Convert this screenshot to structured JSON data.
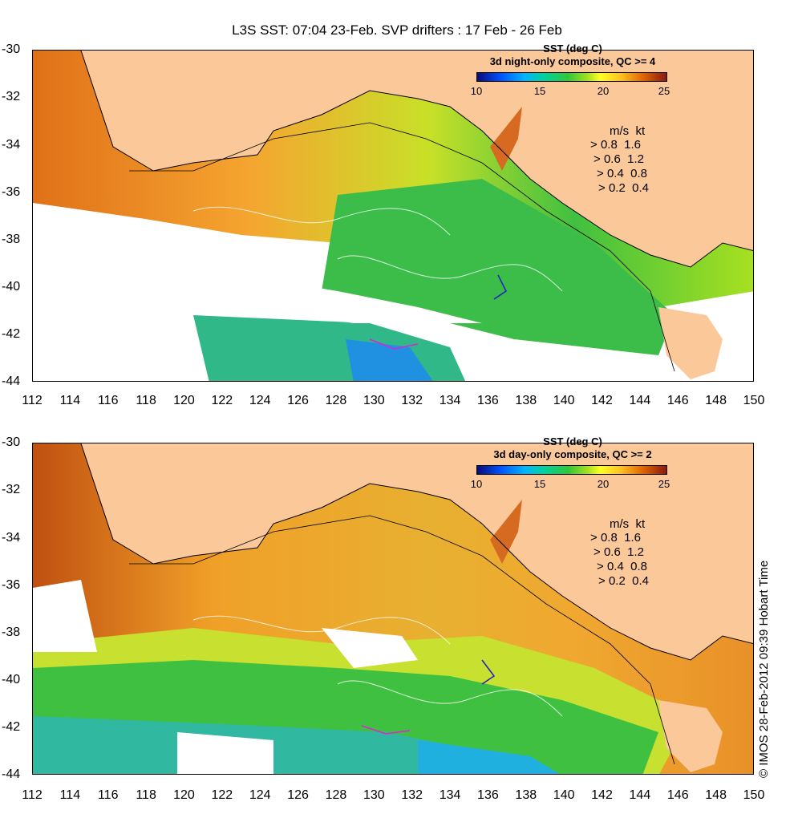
{
  "title": "L3S SST: 07:04 23-Feb. SVP drifters : 17 Feb - 26 Feb",
  "y_ticks": [
    "-30",
    "-32",
    "-34",
    "-36",
    "-38",
    "-40",
    "-42",
    "-44"
  ],
  "x_ticks": [
    "112",
    "114",
    "116",
    "118",
    "120",
    "122",
    "124",
    "126",
    "128",
    "130",
    "132",
    "134",
    "136",
    "138",
    "140",
    "142",
    "144",
    "146",
    "148",
    "150"
  ],
  "colorbar": {
    "units": "SST (deg C)",
    "ticks": [
      "10",
      "15",
      "20",
      "25"
    ],
    "colors": [
      "#0a0a78",
      "#0050ff",
      "#00b4ff",
      "#30c838",
      "#ffff20",
      "#e06000",
      "#8a1a10"
    ]
  },
  "panels": [
    {
      "id": "night",
      "composite": "3d night-only composite, QC >= 4"
    },
    {
      "id": "day",
      "composite": "3d day-only composite, QC >= 2"
    }
  ],
  "legend": {
    "header_ms": "m/s",
    "header_kt": "kt",
    "rows": [
      {
        "ms": "0.8",
        "kt": "1.6"
      },
      {
        "ms": "0.6",
        "kt": "1.2"
      },
      {
        "ms": "0.4",
        "kt": "0.8"
      },
      {
        "ms": "0.2",
        "kt": "0.4"
      }
    ]
  },
  "copyright": "© IMOS 28-Feb-2012 09:39 Hobart Time",
  "colors": {
    "land": "#fbc89a",
    "no_data": "#ffffff"
  }
}
